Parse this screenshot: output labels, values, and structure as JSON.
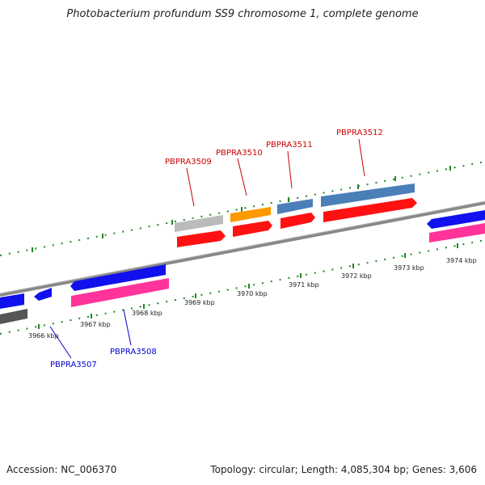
{
  "title": "Photobacterium profundum SS9 chromosome 1, complete genome",
  "footer": {
    "accession": "Accession: NC_006370",
    "summary": "Topology: circular; Length: 4,085,304 bp; Genes: 3,606"
  },
  "scale_labels": [
    "3966 kbp",
    "3967 kbp",
    "3968 kbp",
    "3969 kbp",
    "3970 kbp",
    "3971 kbp",
    "3972 kbp",
    "3973 kbp",
    "3974 kbp"
  ],
  "gene_labels": {
    "PBPRA3507": "PBPRA3507",
    "PBPRA3508": "PBPRA3508",
    "PBPRA3509": "PBPRA3509",
    "PBPRA3510": "PBPRA3510",
    "PBPRA3511": "PBPRA3511",
    "PBPRA3512": "PBPRA3512"
  },
  "colors": {
    "forward_label": "#cc0000",
    "reverse_label": "#0000cc",
    "red": "#ff1111",
    "blue": "#1111ee",
    "pink": "#ff3399",
    "steelblue": "#4a7fb8",
    "orange": "#ff9900",
    "lightgray": "#bbbbbb",
    "darkgray": "#555555",
    "backbone": "#888888",
    "ticks": "#228822"
  }
}
